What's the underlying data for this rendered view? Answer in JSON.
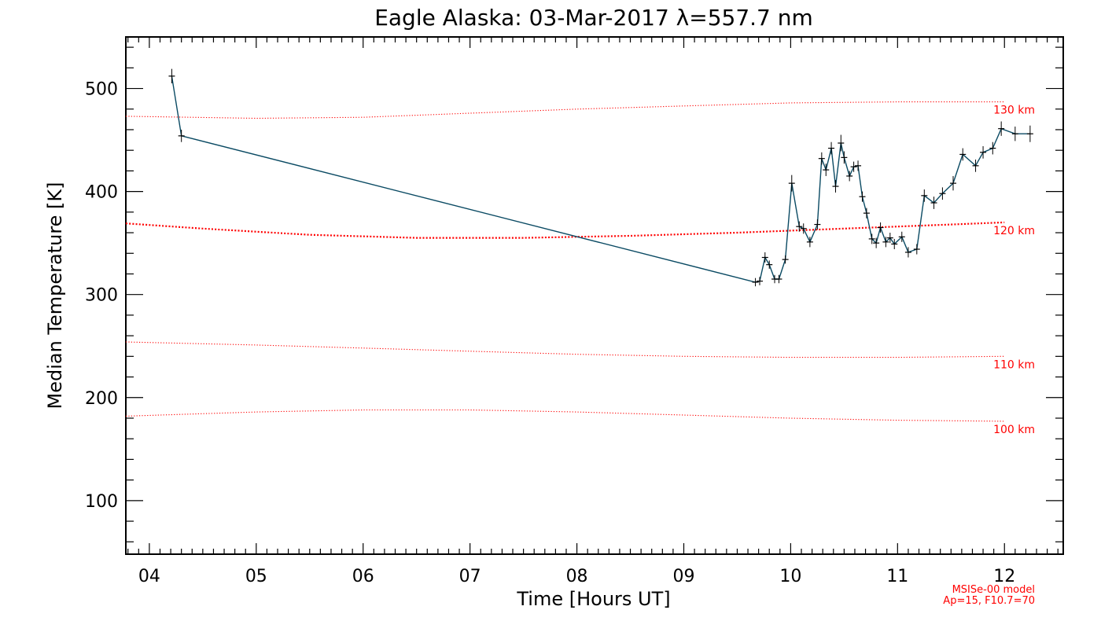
{
  "chart_data": {
    "type": "line",
    "title": "Eagle Alaska: 03-Mar-2017 λ=557.7 nm",
    "xlabel": "Time [Hours UT]",
    "ylabel": "Median Temperature [K]",
    "xlim": [
      3.78,
      12.55
    ],
    "ylim": [
      48,
      550
    ],
    "x_tick_labels": [
      "04",
      "05",
      "06",
      "07",
      "08",
      "09",
      "10",
      "11",
      "12"
    ],
    "x_tick_values": [
      4,
      5,
      6,
      7,
      8,
      9,
      10,
      11,
      12
    ],
    "y_tick_labels": [
      "100",
      "200",
      "300",
      "400",
      "500"
    ],
    "y_tick_values": [
      100,
      200,
      300,
      400,
      500
    ],
    "grid": false,
    "series": [
      {
        "color": "#0a4a63",
        "x": [
          4.21,
          4.3,
          9.67,
          9.71,
          9.76,
          9.8,
          9.85,
          9.89,
          9.95,
          10.01,
          10.08,
          10.12,
          10.18,
          10.25,
          10.29,
          10.33,
          10.38,
          10.42,
          10.47,
          10.5,
          10.55,
          10.59,
          10.63,
          10.67,
          10.71,
          10.76,
          10.8,
          10.84,
          10.89,
          10.93,
          10.97,
          11.04,
          11.1,
          11.18,
          11.25,
          11.34,
          11.42,
          11.52,
          11.61,
          11.73,
          11.8,
          11.89,
          11.97,
          12.1,
          12.24
        ],
        "y": [
          512,
          454,
          312,
          313,
          336,
          329,
          315,
          315,
          334,
          408,
          366,
          364,
          351,
          368,
          432,
          421,
          442,
          405,
          447,
          433,
          415,
          424,
          425,
          395,
          379,
          354,
          350,
          365,
          351,
          355,
          349,
          356,
          341,
          344,
          396,
          389,
          398,
          408,
          436,
          425,
          438,
          442,
          461,
          456,
          456
        ],
        "error": [
          7,
          6,
          4,
          4,
          5,
          4,
          4,
          4,
          4,
          8,
          5,
          5,
          5,
          5,
          6,
          6,
          6,
          6,
          8,
          6,
          5,
          5,
          5,
          5,
          5,
          5,
          5,
          5,
          5,
          5,
          5,
          5,
          5,
          5,
          6,
          6,
          6,
          7,
          6,
          6,
          6,
          6,
          7,
          7,
          8
        ]
      }
    ],
    "model": {
      "name": "MSISe-00 model",
      "params": "Ap=15, F10.7=70",
      "curves": [
        {
          "label": "130 km",
          "x": [
            3.78,
            5.0,
            6.0,
            7.0,
            8.0,
            9.0,
            10.0,
            11.0,
            12.0
          ],
          "y": [
            473,
            471,
            472,
            476,
            480,
            483,
            486,
            487,
            487
          ]
        },
        {
          "label": "120 km",
          "x": [
            3.78,
            4.5,
            5.5,
            6.5,
            7.5,
            8.5,
            9.5,
            10.5,
            11.5,
            12.0
          ],
          "y": [
            369,
            364,
            358,
            355,
            355,
            357,
            360,
            364,
            368,
            370
          ]
        },
        {
          "label": "110 km",
          "x": [
            3.78,
            5.0,
            6.0,
            7.0,
            8.0,
            9.0,
            10.0,
            11.0,
            12.0
          ],
          "y": [
            254,
            251,
            248,
            245,
            242,
            240,
            239,
            239,
            240
          ]
        },
        {
          "label": "100 km",
          "x": [
            3.78,
            5.0,
            6.0,
            7.0,
            8.0,
            9.0,
            10.0,
            11.0,
            12.0
          ],
          "y": [
            182,
            186,
            188,
            188,
            186,
            183,
            180,
            178,
            177
          ]
        }
      ]
    }
  }
}
